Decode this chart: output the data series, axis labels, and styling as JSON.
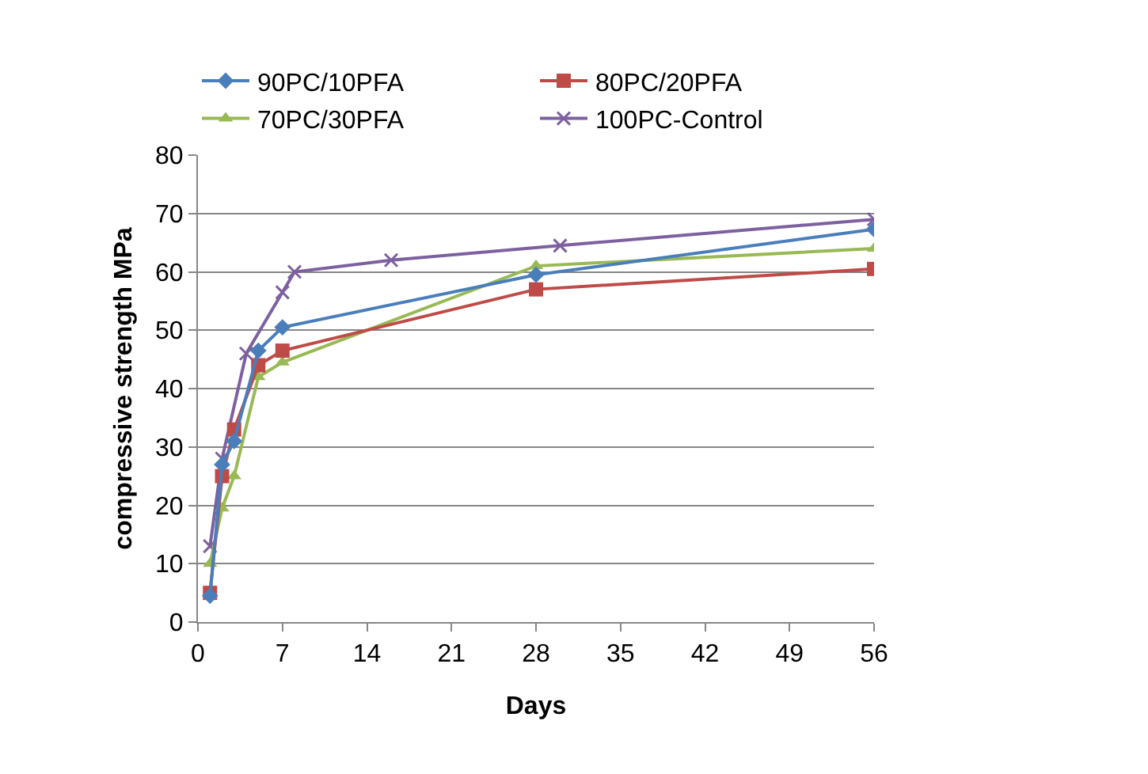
{
  "chart_data": {
    "type": "line",
    "xlabel": "Days",
    "ylabel": "compressive strength MPa",
    "xlim": [
      0,
      56
    ],
    "xticks": [
      0,
      7,
      14,
      21,
      28,
      35,
      42,
      49,
      56
    ],
    "ylim": [
      0,
      80
    ],
    "yticks": [
      0,
      10,
      20,
      30,
      40,
      50,
      60,
      70,
      80
    ],
    "grid": "y",
    "legend": "top",
    "series": [
      {
        "name": "90PC/10PFA",
        "color": "#4a7ebb",
        "marker": "diamond",
        "x": [
          1,
          2,
          3,
          5,
          7,
          28,
          56
        ],
        "values": [
          4.5,
          27,
          31,
          46.5,
          50.5,
          59.5,
          67.3
        ]
      },
      {
        "name": "80PC/20PFA",
        "color": "#be4b48",
        "marker": "square",
        "x": [
          1,
          2,
          3,
          5,
          7,
          28,
          56
        ],
        "values": [
          5,
          25,
          33,
          44,
          46.5,
          57,
          60.5
        ]
      },
      {
        "name": "70PC/30PFA",
        "color": "#98b954",
        "marker": "triangle",
        "x": [
          1,
          2,
          3,
          5,
          7,
          28,
          56
        ],
        "values": [
          10,
          19.5,
          25,
          42,
          44.5,
          61,
          64
        ]
      },
      {
        "name": "100PC-Control",
        "color": "#7d60a0",
        "marker": "cross",
        "x": [
          1,
          2,
          4,
          7,
          8,
          16,
          30,
          56
        ],
        "values": [
          13,
          28,
          46,
          56.5,
          60,
          62,
          64.5,
          69
        ]
      }
    ]
  }
}
